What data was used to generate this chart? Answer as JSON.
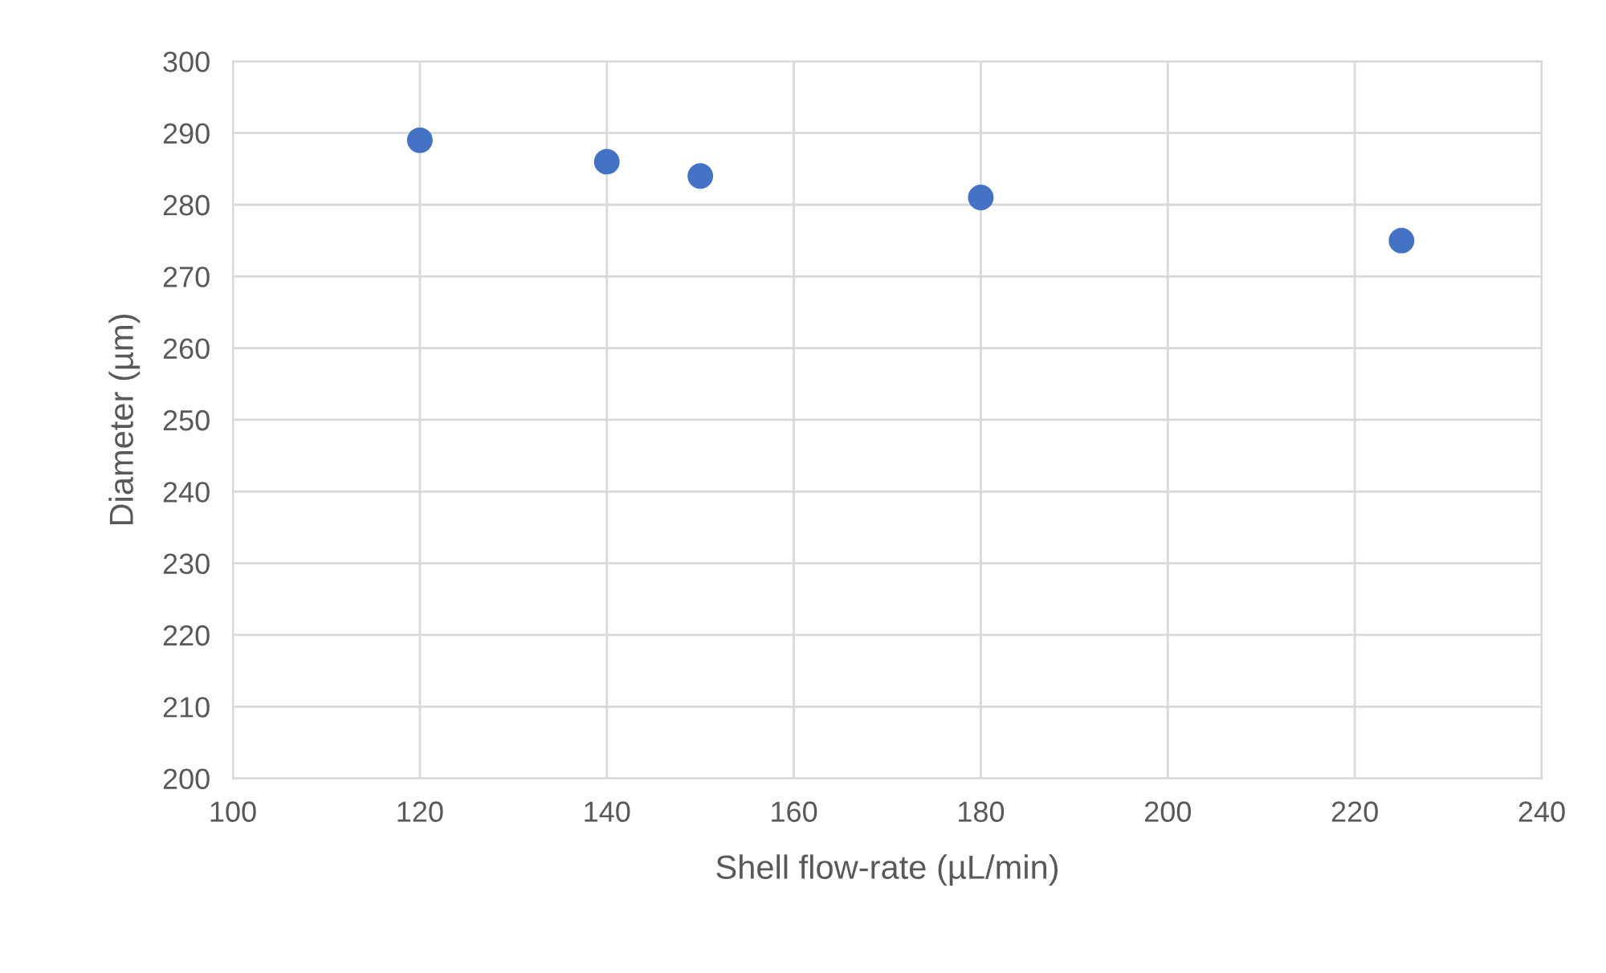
{
  "chart_data": {
    "type": "scatter",
    "xlabel": "Shell flow-rate (µL/min)",
    "ylabel": "Diameter (µm)",
    "x": [
      120,
      140,
      150,
      180,
      225
    ],
    "series": [
      {
        "color": "#4472c4",
        "values": [
          289,
          286,
          284,
          281,
          275
        ]
      }
    ],
    "xlim": [
      100,
      240
    ],
    "xticks": [
      100,
      120,
      140,
      160,
      180,
      200,
      220,
      240
    ],
    "ylim": [
      200,
      300
    ],
    "yticks": [
      200,
      210,
      220,
      230,
      240,
      250,
      260,
      270,
      280,
      290,
      300
    ],
    "grid": true,
    "marker": "circle"
  }
}
